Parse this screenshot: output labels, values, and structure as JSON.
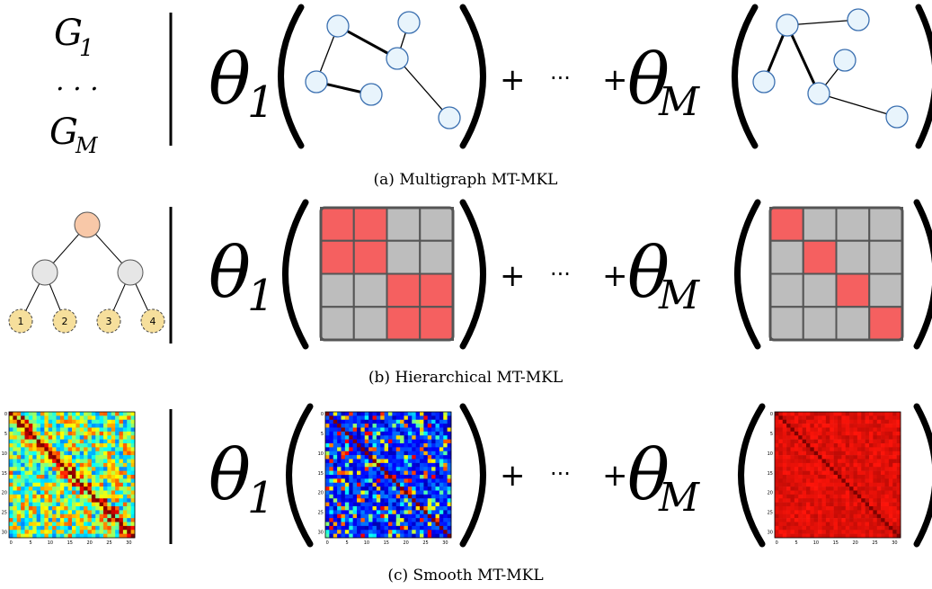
{
  "colors": {
    "node_fill": "#e8f4fc",
    "node_stroke": "#3a6fb0",
    "block_on": "#f56060",
    "block_off": "#bdbdbd",
    "grid_stroke": "#555555",
    "tree_root": "#f8c8a8",
    "tree_inner": "#e6e6e6",
    "tree_leaf": "#f6df9c"
  },
  "panel_a": {
    "left_top": "G",
    "left_top_sub": "1",
    "left_dots": ". . .",
    "left_bottom": "G",
    "left_bottom_sub": "M",
    "theta": "θ",
    "theta1_sub": "1",
    "thetaM_sub": "M",
    "plus": "+",
    "dots": "···",
    "caption": "(a)  Multigraph MT-MKL"
  },
  "panel_b": {
    "leaves": [
      "1",
      "2",
      "3",
      "4"
    ],
    "matrix1": [
      [
        1,
        1,
        0,
        0
      ],
      [
        1,
        1,
        0,
        0
      ],
      [
        0,
        0,
        1,
        1
      ],
      [
        0,
        0,
        1,
        1
      ]
    ],
    "matrixM": [
      [
        1,
        0,
        0,
        0
      ],
      [
        0,
        1,
        0,
        0
      ],
      [
        0,
        0,
        1,
        0
      ],
      [
        0,
        0,
        0,
        1
      ]
    ],
    "theta": "θ",
    "theta1_sub": "1",
    "thetaM_sub": "M",
    "plus": "+",
    "dots": "···",
    "caption": "(b)  Hierarchical MT-MKL"
  },
  "panel_c": {
    "theta": "θ",
    "theta1_sub": "1",
    "thetaM_sub": "M",
    "plus": "+",
    "dots": "···",
    "tick_labels": [
      "0",
      "5",
      "10",
      "15",
      "20",
      "25",
      "30"
    ],
    "caption": "(c)  Smooth MT-MKL"
  }
}
